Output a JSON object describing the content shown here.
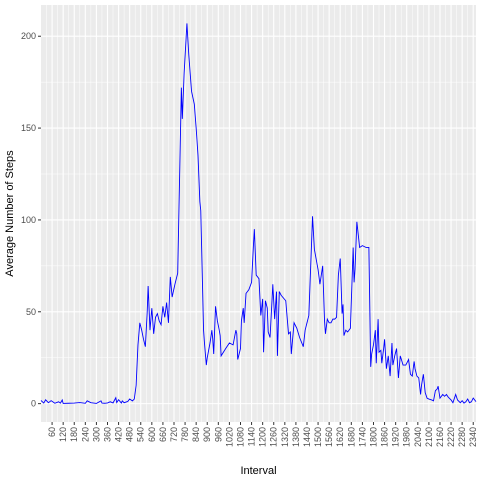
{
  "chart_data": {
    "type": "line",
    "title": "",
    "xlabel": "Interval",
    "ylabel": "Average Number of Steps",
    "xlim": [
      0,
      2355
    ],
    "ylim": [
      -10,
      217
    ],
    "xticks": [
      60,
      120,
      180,
      240,
      300,
      360,
      420,
      480,
      540,
      600,
      660,
      720,
      780,
      840,
      900,
      960,
      1020,
      1080,
      1140,
      1200,
      1260,
      1320,
      1380,
      1440,
      1500,
      1560,
      1620,
      1680,
      1740,
      1800,
      1860,
      1920,
      1980,
      2040,
      2100,
      2160,
      2220,
      2280,
      2340
    ],
    "yticks": [
      0,
      50,
      100,
      150,
      200
    ],
    "grid": true,
    "line_color": "#0000ff",
    "background_color": "#ebebeb",
    "grid_color": "#ffffff",
    "series": [
      {
        "points": [
          [
            0,
            1.7
          ],
          [
            15,
            0.3
          ],
          [
            25,
            2.1
          ],
          [
            40,
            0.5
          ],
          [
            55,
            1.6
          ],
          [
            75,
            0.2
          ],
          [
            95,
            1.0
          ],
          [
            105,
            0.3
          ],
          [
            115,
            2.0
          ],
          [
            120,
            0.1
          ],
          [
            150,
            0.2
          ],
          [
            180,
            0.3
          ],
          [
            210,
            0.6
          ],
          [
            240,
            0.2
          ],
          [
            250,
            1.5
          ],
          [
            270,
            0.5
          ],
          [
            300,
            0.1
          ],
          [
            325,
            1.5
          ],
          [
            330,
            0.3
          ],
          [
            345,
            0.2
          ],
          [
            360,
            0.4
          ],
          [
            375,
            1.0
          ],
          [
            390,
            0.4
          ],
          [
            405,
            3.2
          ],
          [
            410,
            0.6
          ],
          [
            420,
            2.1
          ],
          [
            435,
            0.3
          ],
          [
            440,
            1.5
          ],
          [
            450,
            0.5
          ],
          [
            470,
            1.2
          ],
          [
            480,
            2.5
          ],
          [
            495,
            1.5
          ],
          [
            505,
            2.5
          ],
          [
            515,
            10
          ],
          [
            525,
            32
          ],
          [
            535,
            44
          ],
          [
            545,
            40
          ],
          [
            555,
            35
          ],
          [
            565,
            31
          ],
          [
            575,
            50
          ],
          [
            580,
            64
          ],
          [
            590,
            40
          ],
          [
            600,
            52
          ],
          [
            610,
            38
          ],
          [
            620,
            47
          ],
          [
            630,
            49
          ],
          [
            640,
            45
          ],
          [
            650,
            43
          ],
          [
            660,
            53
          ],
          [
            670,
            47
          ],
          [
            680,
            55
          ],
          [
            690,
            44
          ],
          [
            700,
            69
          ],
          [
            710,
            58
          ],
          [
            725,
            65
          ],
          [
            740,
            71
          ],
          [
            760,
            172
          ],
          [
            765,
            155
          ],
          [
            775,
            180
          ],
          [
            790,
            207
          ],
          [
            800,
            190
          ],
          [
            815,
            170
          ],
          [
            830,
            163
          ],
          [
            840,
            150
          ],
          [
            850,
            135
          ],
          [
            860,
            110
          ],
          [
            865,
            105
          ],
          [
            880,
            40
          ],
          [
            885,
            33
          ],
          [
            895,
            21
          ],
          [
            900,
            25
          ],
          [
            915,
            33
          ],
          [
            925,
            40
          ],
          [
            930,
            35
          ],
          [
            935,
            27
          ],
          [
            945,
            53
          ],
          [
            955,
            45
          ],
          [
            965,
            40
          ],
          [
            970,
            37
          ],
          [
            975,
            26
          ],
          [
            1000,
            30
          ],
          [
            1020,
            33
          ],
          [
            1040,
            32
          ],
          [
            1055,
            40
          ],
          [
            1060,
            38
          ],
          [
            1065,
            24
          ],
          [
            1080,
            30
          ],
          [
            1085,
            45
          ],
          [
            1095,
            52
          ],
          [
            1100,
            44
          ],
          [
            1110,
            60
          ],
          [
            1125,
            62
          ],
          [
            1140,
            66
          ],
          [
            1150,
            86
          ],
          [
            1155,
            95
          ],
          [
            1165,
            70
          ],
          [
            1180,
            68
          ],
          [
            1190,
            48
          ],
          [
            1200,
            57
          ],
          [
            1205,
            28
          ],
          [
            1215,
            56
          ],
          [
            1225,
            52
          ],
          [
            1230,
            39
          ],
          [
            1240,
            36
          ],
          [
            1250,
            55
          ],
          [
            1255,
            65
          ],
          [
            1265,
            46
          ],
          [
            1275,
            61
          ],
          [
            1280,
            26
          ],
          [
            1290,
            61
          ],
          [
            1300,
            59
          ],
          [
            1325,
            56
          ],
          [
            1340,
            38
          ],
          [
            1350,
            39
          ],
          [
            1355,
            27
          ],
          [
            1370,
            44
          ],
          [
            1385,
            41
          ],
          [
            1400,
            36
          ],
          [
            1420,
            31
          ],
          [
            1430,
            40
          ],
          [
            1445,
            46
          ],
          [
            1450,
            48
          ],
          [
            1465,
            88
          ],
          [
            1470,
            102
          ],
          [
            1480,
            84
          ],
          [
            1500,
            73
          ],
          [
            1510,
            65
          ],
          [
            1525,
            75
          ],
          [
            1535,
            45
          ],
          [
            1540,
            38
          ],
          [
            1550,
            46
          ],
          [
            1560,
            44
          ],
          [
            1570,
            44
          ],
          [
            1580,
            46
          ],
          [
            1590,
            46
          ],
          [
            1600,
            47
          ],
          [
            1610,
            70
          ],
          [
            1620,
            79
          ],
          [
            1630,
            49
          ],
          [
            1635,
            54
          ],
          [
            1640,
            37
          ],
          [
            1650,
            40
          ],
          [
            1660,
            39
          ],
          [
            1675,
            41
          ],
          [
            1690,
            85
          ],
          [
            1695,
            66
          ],
          [
            1700,
            73
          ],
          [
            1710,
            99
          ],
          [
            1725,
            85
          ],
          [
            1740,
            86
          ],
          [
            1760,
            85
          ],
          [
            1775,
            85
          ],
          [
            1785,
            20
          ],
          [
            1790,
            27
          ],
          [
            1800,
            32
          ],
          [
            1810,
            40
          ],
          [
            1815,
            22
          ],
          [
            1825,
            46
          ],
          [
            1830,
            28
          ],
          [
            1840,
            29
          ],
          [
            1845,
            22
          ],
          [
            1855,
            30
          ],
          [
            1860,
            35
          ],
          [
            1870,
            19
          ],
          [
            1880,
            26
          ],
          [
            1890,
            15
          ],
          [
            1900,
            33
          ],
          [
            1905,
            21
          ],
          [
            1915,
            26
          ],
          [
            1925,
            30
          ],
          [
            1935,
            14
          ],
          [
            1945,
            26
          ],
          [
            1960,
            21
          ],
          [
            1975,
            21
          ],
          [
            1990,
            24
          ],
          [
            2000,
            16
          ],
          [
            2010,
            15
          ],
          [
            2020,
            23
          ],
          [
            2025,
            19
          ],
          [
            2035,
            15
          ],
          [
            2045,
            14
          ],
          [
            2055,
            5
          ],
          [
            2060,
            10
          ],
          [
            2070,
            16
          ],
          [
            2080,
            6
          ],
          [
            2090,
            3
          ],
          [
            2100,
            2.5
          ],
          [
            2115,
            2
          ],
          [
            2125,
            1.5
          ],
          [
            2135,
            7
          ],
          [
            2145,
            8
          ],
          [
            2150,
            9.5
          ],
          [
            2160,
            3
          ],
          [
            2175,
            5
          ],
          [
            2185,
            4
          ],
          [
            2195,
            5
          ],
          [
            2205,
            3.5
          ],
          [
            2220,
            2
          ],
          [
            2230,
            0.5
          ],
          [
            2245,
            5
          ],
          [
            2255,
            2
          ],
          [
            2270,
            0.5
          ],
          [
            2280,
            1.6
          ],
          [
            2290,
            0.3
          ],
          [
            2300,
            1.0
          ],
          [
            2310,
            2.5
          ],
          [
            2320,
            0.5
          ],
          [
            2330,
            1.0
          ],
          [
            2340,
            3.0
          ],
          [
            2355,
            1.1
          ]
        ]
      }
    ]
  }
}
